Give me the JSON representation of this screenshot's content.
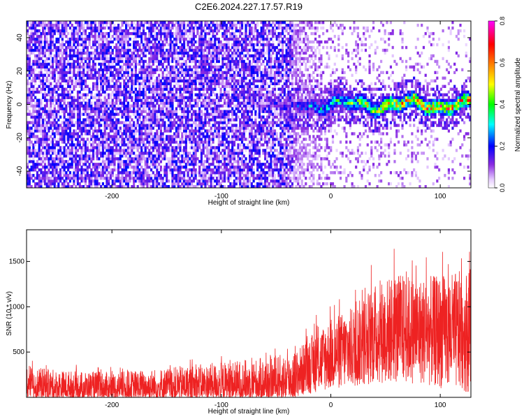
{
  "figure_title": "C2E6.2024.227.17.57.R19",
  "colors": {
    "snr_line": "#ee2222",
    "axis": "#000000"
  },
  "chart_data": [
    {
      "type": "heatmap",
      "title": "C2E6.2024.227.17.57.R19",
      "xlabel": "Height of straight line (km)",
      "ylabel": "Frequency (Hz)",
      "xlim": [
        -278,
        128
      ],
      "ylim": [
        -50,
        50
      ],
      "xticks": [
        -200,
        -100,
        0,
        100
      ],
      "xtick_labels": [
        "-200",
        "-100",
        "0",
        "100"
      ],
      "yticks": [
        -40,
        -20,
        0,
        20,
        40
      ],
      "ytick_labels": [
        "-40",
        "-20",
        "0",
        "20",
        "40"
      ],
      "colorbar": {
        "label": "Normalized spectral amplitude",
        "range": [
          0.0,
          0.8
        ],
        "ticks": [
          0.0,
          0.2,
          0.4,
          0.6,
          0.8
        ],
        "tick_labels": [
          "0.0",
          "0.2",
          "0.4",
          "0.6",
          "0.8"
        ],
        "colormap": "rainbow (white→violet→blue→cyan→green→yellow→red→magenta)"
      },
      "description_of_values": {
        "noise_region_x": [
          -278,
          -30
        ],
        "noise_amplitude": 0.15,
        "signal_band_center_hz": 0,
        "signal_band_half_width_hz": 5,
        "signal_peak_amplitude_range": [
          0.3,
          0.6
        ],
        "signal_onset_x": -30
      },
      "grid": false
    },
    {
      "type": "line",
      "xlabel": "Height of straight line (km)",
      "ylabel": "SNR (10 * v/v)",
      "xlim": [
        -278,
        128
      ],
      "ylim": [
        0,
        1850
      ],
      "xticks": [
        -200,
        -100,
        0,
        100
      ],
      "xtick_labels": [
        "-200",
        "-100",
        "0",
        "100"
      ],
      "yticks": [
        500,
        1000,
        1500
      ],
      "ytick_labels": [
        "500",
        "1000",
        "1500"
      ],
      "series": [
        {
          "color": "#ee2222",
          "envelope": {
            "x": [
              -278,
              -250,
              -200,
              -150,
              -100,
              -70,
              -50,
              -30,
              -15,
              0,
              20,
              40,
              60,
              80,
              100,
              128
            ],
            "low": [
              0,
              0,
              0,
              0,
              0,
              0,
              0,
              0,
              50,
              80,
              100,
              150,
              150,
              150,
              100,
              50
            ],
            "high": [
              350,
              300,
              280,
              330,
              390,
              430,
              460,
              540,
              720,
              870,
              1000,
              1250,
              1380,
              1330,
              1350,
              1420
            ]
          }
        }
      ],
      "grid": false
    }
  ]
}
